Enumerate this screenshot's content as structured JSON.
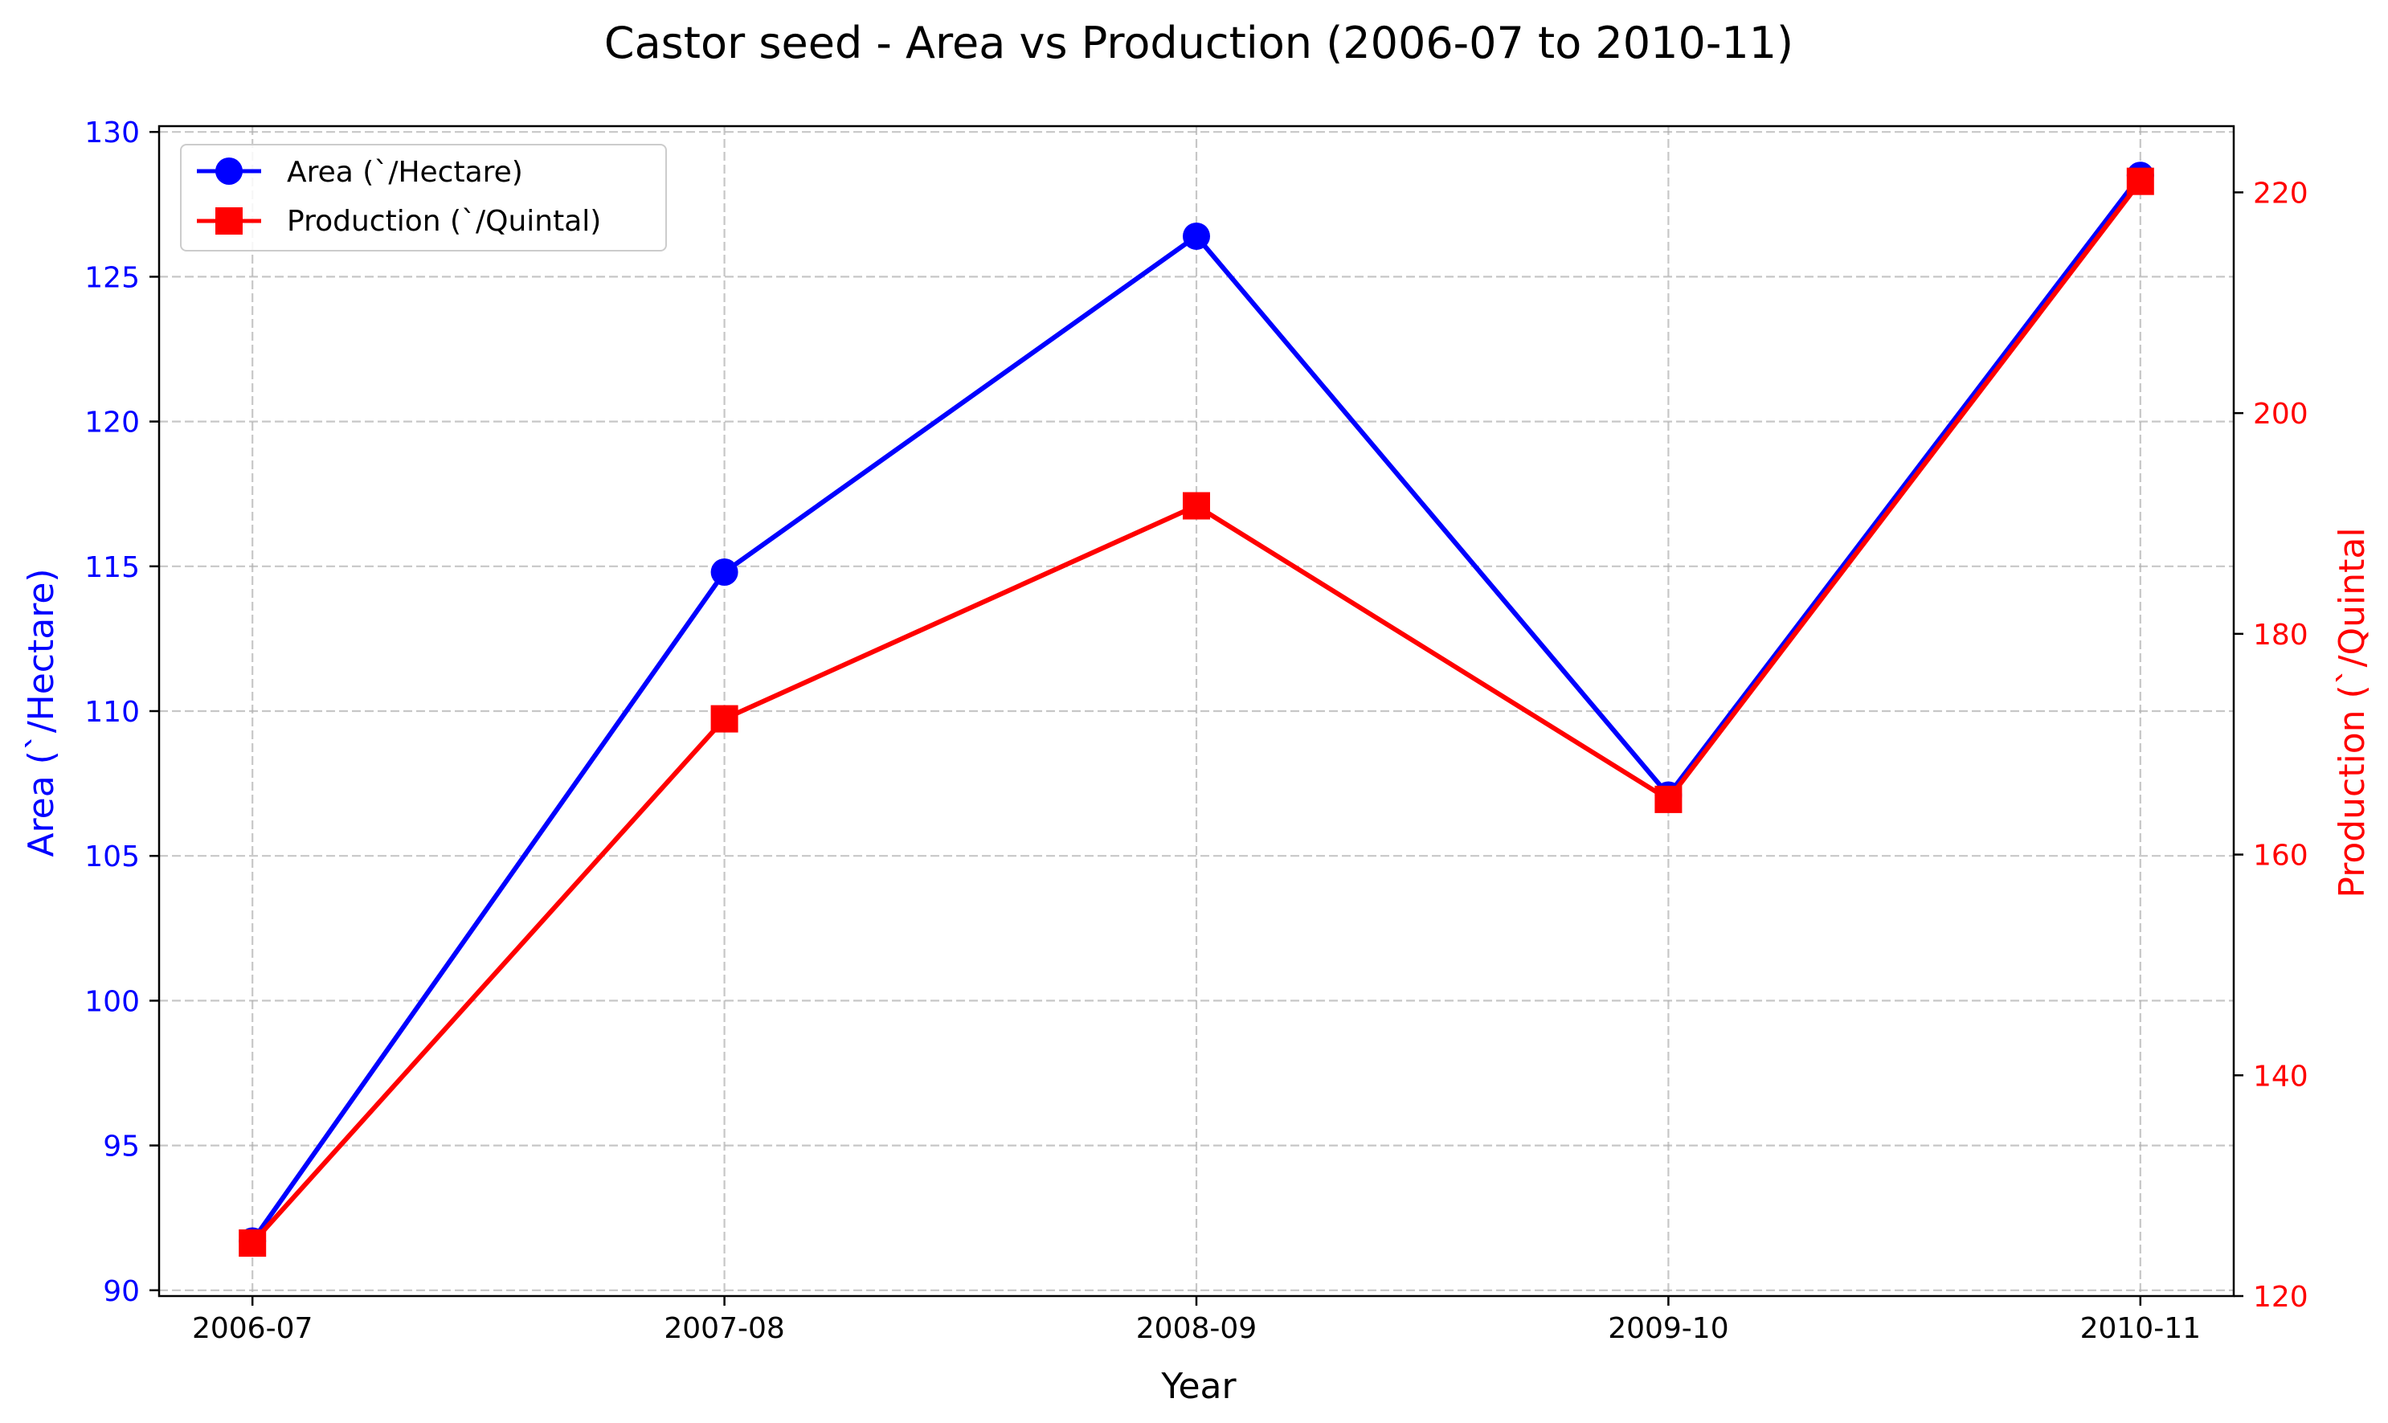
{
  "chart_data": {
    "type": "line",
    "title": "Castor seed - Area vs Production (2006-07 to 2010-11)",
    "xlabel": "Year",
    "ylabel_left": "Area (`/Hectare)",
    "ylabel_right": "Production (`/Quintal",
    "categories": [
      "2006-07",
      "2007-08",
      "2008-09",
      "2009-10",
      "2010-11"
    ],
    "y_left_ticks": [
      90,
      95,
      100,
      105,
      110,
      115,
      120,
      125,
      130
    ],
    "y_right_ticks": [
      120,
      140,
      160,
      180,
      200,
      220
    ],
    "y_left_lim": [
      89.8,
      130.2
    ],
    "y_right_lim": [
      120,
      226
    ],
    "grid": true,
    "legend_position": "top-left",
    "series": [
      {
        "name": "Area (`/Hectare)",
        "axis": "left",
        "color": "#0000ff",
        "marker": "circle",
        "values": [
          91.7,
          114.8,
          126.4,
          107.1,
          128.5
        ]
      },
      {
        "name": "Production (`/Quintal)",
        "axis": "right",
        "color": "#ff0000",
        "marker": "square",
        "values": [
          124.8,
          172.3,
          191.6,
          165.0,
          221.0
        ]
      }
    ],
    "colors": {
      "left_axis": "#0000ff",
      "right_axis": "#ff0000",
      "grid": "#b0b0b0"
    }
  }
}
